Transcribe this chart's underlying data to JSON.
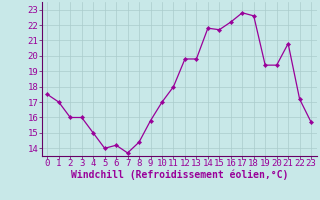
{
  "x": [
    0,
    1,
    2,
    3,
    4,
    5,
    6,
    7,
    8,
    9,
    10,
    11,
    12,
    13,
    14,
    15,
    16,
    17,
    18,
    19,
    20,
    21,
    22,
    23
  ],
  "y": [
    17.5,
    17.0,
    16.0,
    16.0,
    15.0,
    14.0,
    14.2,
    13.7,
    14.4,
    15.8,
    17.0,
    18.0,
    19.8,
    19.8,
    21.8,
    21.7,
    22.2,
    22.8,
    22.6,
    19.4,
    19.4,
    20.8,
    17.2,
    15.7
  ],
  "line_color": "#990099",
  "marker": "D",
  "marker_size": 2.2,
  "bg_color": "#c8e8e8",
  "grid_color": "#aacccc",
  "xlabel": "Windchill (Refroidissement éolien,°C)",
  "xlim": [
    -0.5,
    23.5
  ],
  "ylim": [
    13.5,
    23.5
  ],
  "yticks": [
    14,
    15,
    16,
    17,
    18,
    19,
    20,
    21,
    22,
    23
  ],
  "xticks": [
    0,
    1,
    2,
    3,
    4,
    5,
    6,
    7,
    8,
    9,
    10,
    11,
    12,
    13,
    14,
    15,
    16,
    17,
    18,
    19,
    20,
    21,
    22,
    23
  ],
  "tick_fontsize": 6.5,
  "label_fontsize": 7.0,
  "axis_color": "#660066"
}
